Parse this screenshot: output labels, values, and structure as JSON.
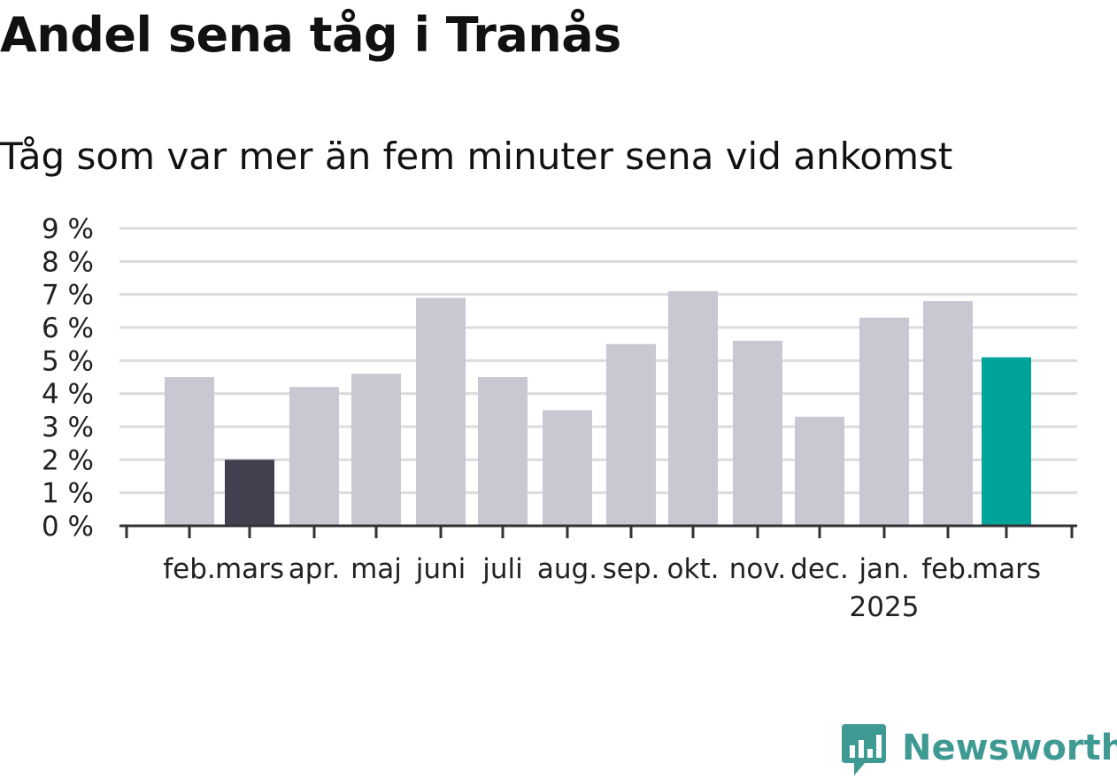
{
  "title": "Andel sena tåg i Tranås",
  "subtitle": "Tåg som var mer än fem minuter sena vid ankomst",
  "brand": {
    "name": "Newsworthy",
    "icon": "newsworthy-logo-icon"
  },
  "colors": {
    "default_bar": "#c8c7d2",
    "comparison_bar": "#42404e",
    "latest_bar": "#00a399",
    "gridline": "#dcdcdc",
    "axis": "#333333",
    "brand": "#3f9a93"
  },
  "chart_data": {
    "type": "bar",
    "categories": [
      "feb.",
      "mars",
      "apr.",
      "maj",
      "juni",
      "juli",
      "aug.",
      "sep.",
      "okt.",
      "nov.",
      "dec.",
      "jan.",
      "feb.",
      "mars"
    ],
    "category_sublabels": [
      "",
      "",
      "",
      "",
      "",
      "",
      "",
      "",
      "",
      "",
      "",
      "2025",
      "",
      ""
    ],
    "values": [
      4.5,
      2.0,
      4.2,
      4.6,
      6.9,
      4.5,
      3.5,
      5.5,
      7.1,
      5.6,
      3.3,
      6.3,
      6.8,
      5.1
    ],
    "highlight": [
      "default",
      "comparison",
      "default",
      "default",
      "default",
      "default",
      "default",
      "default",
      "default",
      "default",
      "default",
      "default",
      "default",
      "latest"
    ],
    "ylim": [
      0,
      9
    ],
    "yticks": [
      0,
      1,
      2,
      3,
      4,
      5,
      6,
      7,
      8,
      9
    ],
    "ytick_labels": [
      "0 %",
      "1 %",
      "2 %",
      "3 %",
      "4 %",
      "5 %",
      "6 %",
      "7 %",
      "8 %",
      "9 %"
    ],
    "xlabel": "",
    "ylabel": "",
    "grid": true
  }
}
